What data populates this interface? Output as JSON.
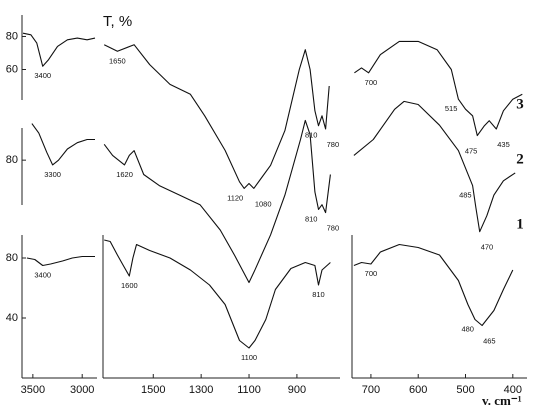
{
  "chart_data": [
    {
      "type": "line",
      "name": "3",
      "color": "#111111",
      "ylabel": "T, %",
      "ylim": [
        -19,
        93
      ],
      "yticks": [
        80,
        60
      ],
      "x": [
        3600,
        3520,
        3460,
        3400,
        3340,
        3250,
        3150,
        3050,
        2950,
        2870,
        null,
        1705,
        1650,
        1580,
        1515,
        1430,
        1345,
        1285,
        1200,
        1140,
        1120,
        1100,
        1080,
        1050,
        1010,
        950,
        890,
        865,
        845,
        825,
        810,
        795,
        780,
        765,
        null,
        735,
        720,
        705,
        680,
        650,
        640,
        600,
        560,
        530,
        515,
        500,
        485,
        475,
        460,
        450,
        435,
        420,
        400,
        380
      ],
      "values": [
        82,
        81,
        76,
        62,
        66,
        74,
        78,
        79,
        78,
        79,
        null,
        75,
        71,
        75,
        63,
        51,
        45,
        32,
        11,
        -8,
        -12,
        -9,
        -12,
        -6,
        2,
        23,
        60,
        72,
        60,
        35,
        26,
        32,
        24,
        50,
        null,
        58,
        61,
        58,
        69,
        75,
        77,
        77,
        72,
        60,
        42,
        36,
        32,
        20,
        26,
        29,
        24,
        35,
        42,
        45
      ],
      "peak_labels": [
        3400,
        1650,
        1120,
        1080,
        810,
        780,
        700,
        515,
        475,
        435
      ]
    },
    {
      "type": "line",
      "name": "2",
      "color": "#111111",
      "ylim": [
        -8,
        121
      ],
      "yticks": [
        80
      ],
      "x": [
        3510,
        3440,
        3360,
        3300,
        3240,
        3150,
        3050,
        2950,
        2870,
        null,
        1705,
        1670,
        1620,
        1600,
        1580,
        1540,
        1475,
        1390,
        1305,
        1220,
        1160,
        1100,
        1075,
        1010,
        950,
        885,
        865,
        845,
        825,
        810,
        795,
        780,
        760,
        null,
        736,
        695,
        650,
        630,
        600,
        555,
        515,
        485,
        478,
        470,
        455,
        440,
        420,
        395
      ],
      "values": [
        103,
        97,
        85,
        77,
        80,
        87,
        91,
        93,
        93,
        null,
        90,
        83,
        77,
        83,
        86,
        71,
        64,
        58,
        52,
        36,
        20,
        3,
        11,
        33,
        58,
        93,
        105,
        96,
        60,
        49,
        52,
        47,
        71,
        null,
        83,
        93,
        112,
        117,
        115,
        102,
        86,
        64,
        50,
        35,
        45,
        58,
        67,
        72
      ],
      "peak_labels": [
        3300,
        1620,
        810,
        780,
        485,
        470
      ]
    },
    {
      "type": "line",
      "name": "1",
      "color": "#111111",
      "ylim": [
        2,
        102
      ],
      "yticks": [
        80,
        40
      ],
      "xlim": [
        [
          3610,
          2850
        ],
        [
          1710,
          720
        ],
        [
          740,
          370
        ]
      ],
      "xticks": [
        3500,
        3000,
        1500,
        1300,
        1100,
        900,
        700,
        600,
        500,
        400
      ],
      "xlabel": "v. cm⁻¹",
      "x": [
        3560,
        3480,
        3400,
        3320,
        3200,
        3100,
        3000,
        2870,
        null,
        1705,
        1680,
        1650,
        1625,
        1600,
        1585,
        1570,
        1515,
        1430,
        1345,
        1265,
        1200,
        1140,
        1100,
        1075,
        1030,
        990,
        925,
        865,
        825,
        810,
        795,
        760,
        null,
        736,
        720,
        700,
        680,
        640,
        600,
        555,
        515,
        495,
        480,
        465,
        440,
        420,
        400
      ],
      "values": [
        80,
        79,
        75,
        76,
        78,
        80,
        81,
        81,
        null,
        92,
        91,
        82,
        75,
        68,
        80,
        89,
        85,
        80,
        72,
        62,
        49,
        25,
        20,
        25,
        39,
        59,
        73,
        77,
        75,
        62,
        72,
        77,
        null,
        75,
        77,
        76,
        84,
        89,
        87,
        82,
        65,
        49,
        39,
        35,
        45,
        59,
        72
      ],
      "peak_labels": [
        3400,
        1600,
        1100,
        810,
        700,
        480,
        465
      ]
    }
  ]
}
